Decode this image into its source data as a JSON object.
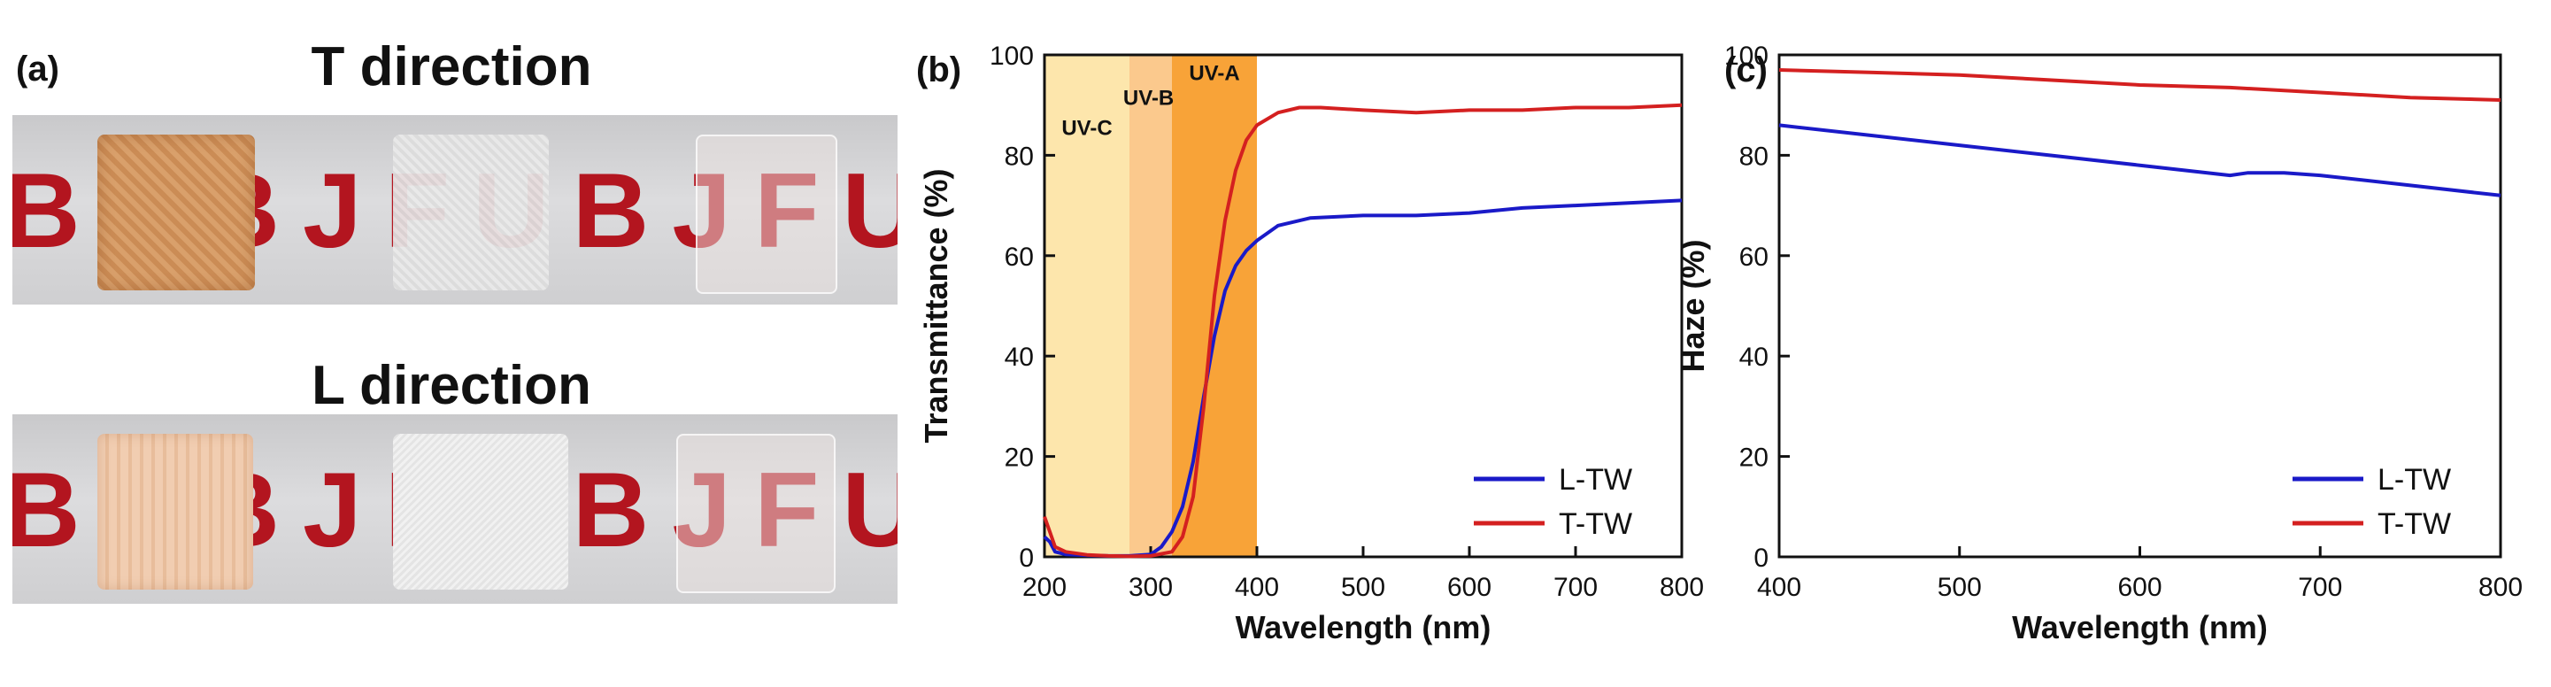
{
  "panel_a": {
    "label": "(a)",
    "t_title": "T direction",
    "l_title": "L direction",
    "strip_text": "BUBJFUBJFU"
  },
  "chart_data": [
    {
      "panel": "(b)",
      "type": "line",
      "xlabel": "Wavelength (nm)",
      "ylabel": "Transmittance (%)",
      "xlim": [
        200,
        800
      ],
      "ylim": [
        0,
        100
      ],
      "xticks": [
        200,
        300,
        400,
        500,
        600,
        700,
        800
      ],
      "yticks": [
        0,
        20,
        40,
        60,
        80,
        100
      ],
      "bands": [
        {
          "name": "UV-C",
          "range": [
            200,
            280
          ],
          "color": "#fde6ac"
        },
        {
          "name": "UV-B",
          "range": [
            280,
            320
          ],
          "color": "#fbc98d"
        },
        {
          "name": "UV-A",
          "range": [
            320,
            400
          ],
          "color": "#f8a338"
        }
      ],
      "series": [
        {
          "name": "L-TW",
          "color": "#1a1ac8",
          "x": [
            200,
            205,
            210,
            220,
            240,
            260,
            280,
            300,
            310,
            320,
            330,
            340,
            350,
            360,
            370,
            380,
            390,
            400,
            420,
            450,
            500,
            550,
            600,
            650,
            700,
            750,
            800
          ],
          "y": [
            4,
            3,
            1,
            0.5,
            0.3,
            0.2,
            0.2,
            0.5,
            2,
            5,
            10,
            19,
            32,
            44,
            53,
            58,
            61,
            63,
            66,
            67.5,
            68,
            68,
            68.5,
            69.5,
            70,
            70.5,
            71
          ]
        },
        {
          "name": "T-TW",
          "color": "#d42020",
          "x": [
            200,
            205,
            210,
            220,
            240,
            260,
            280,
            300,
            320,
            330,
            340,
            350,
            360,
            370,
            380,
            390,
            400,
            420,
            440,
            460,
            500,
            550,
            600,
            650,
            700,
            750,
            800
          ],
          "y": [
            8,
            5,
            2,
            1,
            0.4,
            0.2,
            0.1,
            0.2,
            1,
            4,
            12,
            30,
            52,
            67,
            77,
            83,
            86,
            88.5,
            89.5,
            89.5,
            89,
            88.5,
            89,
            89,
            89.5,
            89.5,
            90
          ]
        }
      ],
      "legend_position": "bottom-right"
    },
    {
      "panel": "(c)",
      "type": "line",
      "xlabel": "Wavelength (nm)",
      "ylabel": "Haze (%)",
      "xlim": [
        400,
        800
      ],
      "ylim": [
        0,
        100
      ],
      "xticks": [
        400,
        500,
        600,
        700,
        800
      ],
      "yticks": [
        0,
        20,
        40,
        60,
        80,
        100
      ],
      "series": [
        {
          "name": "L-TW",
          "color": "#1a1ac8",
          "x": [
            400,
            450,
            500,
            550,
            600,
            650,
            660,
            680,
            700,
            750,
            800
          ],
          "y": [
            86,
            84,
            82,
            80,
            78,
            76,
            76.5,
            76.5,
            76,
            74,
            72
          ]
        },
        {
          "name": "T-TW",
          "color": "#d42020",
          "x": [
            400,
            450,
            500,
            550,
            600,
            650,
            700,
            750,
            800
          ],
          "y": [
            97,
            96.5,
            96,
            95,
            94,
            93.5,
            92.5,
            91.5,
            91
          ]
        }
      ],
      "legend_position": "bottom-right"
    }
  ]
}
